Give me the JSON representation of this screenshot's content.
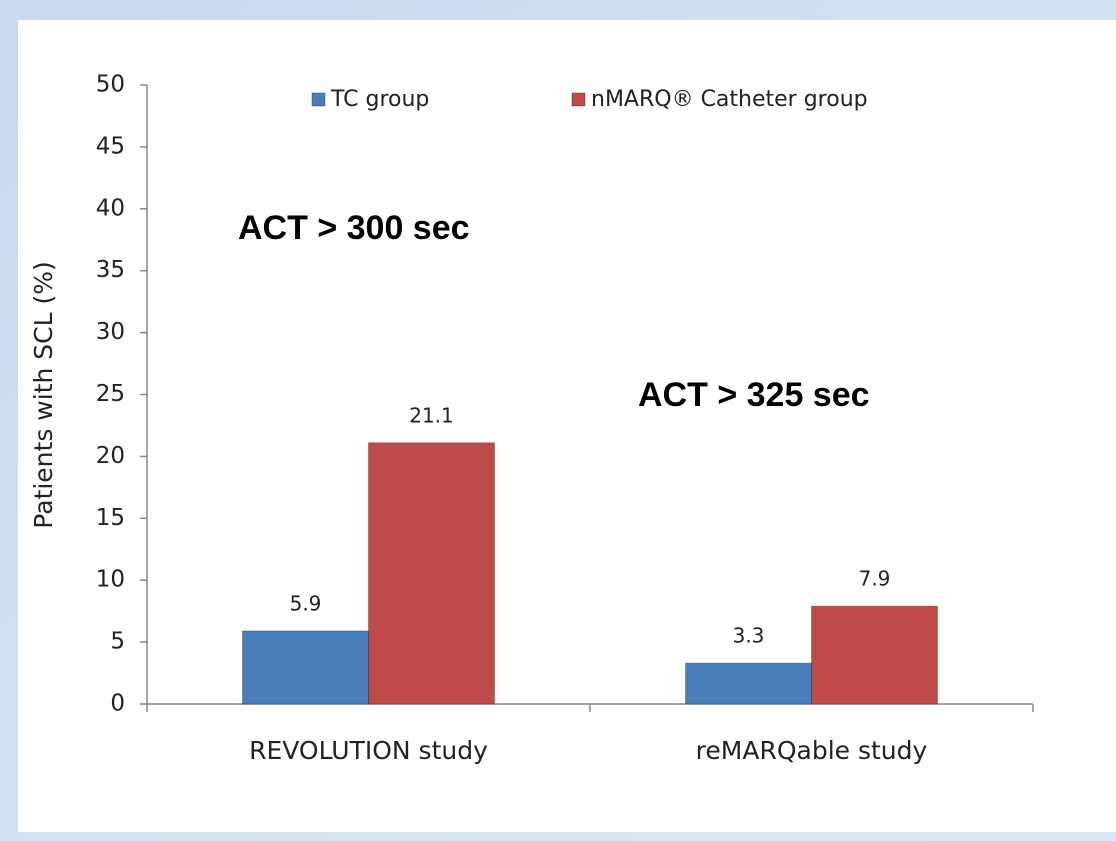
{
  "chart_data": {
    "type": "bar",
    "y_label": "Patients with SCL (%)",
    "categories": [
      "REVOLUTION study",
      "reMARQable study"
    ],
    "series": [
      {
        "name": "TC group",
        "color": "#4a7ebb",
        "values": [
          5.9,
          3.3
        ]
      },
      {
        "name": "nMARQ® Catheter group",
        "color": "#be4b48",
        "values": [
          21.1,
          7.9
        ]
      }
    ],
    "annotations": [
      "ACT > 300 sec",
      "ACT > 325 sec"
    ],
    "ylim": [
      0,
      50
    ],
    "yticks": [
      0,
      5,
      10,
      15,
      20,
      25,
      30,
      35,
      40,
      45,
      50
    ],
    "legend": "top",
    "grid": false
  }
}
